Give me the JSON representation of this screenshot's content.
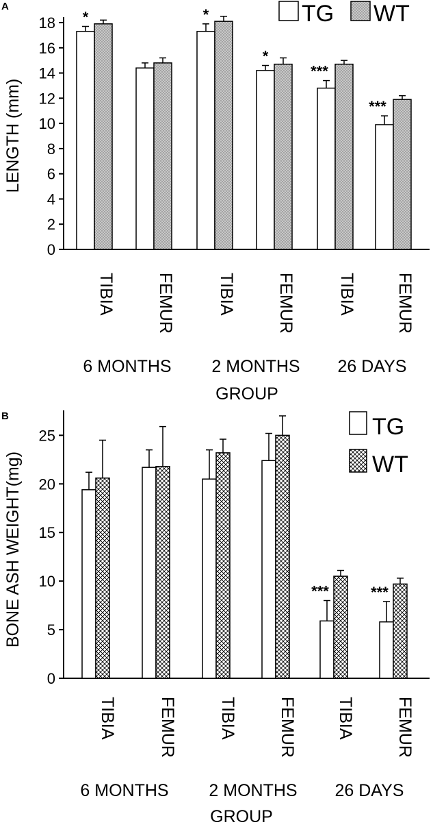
{
  "chart_data": [
    {
      "panel": "A",
      "type": "bar",
      "ylabel": "LENGTH (mm)",
      "xlabel": "GROUP",
      "ylim": [
        0,
        18
      ],
      "yticks": [
        0,
        2,
        4,
        6,
        8,
        10,
        12,
        14,
        16,
        18
      ],
      "categories": [
        "TIBIA",
        "FEMUR",
        "TIBIA",
        "FEMUR",
        "TIBIA",
        "FEMUR"
      ],
      "groups": [
        "6 MONTHS",
        "2 MONTHS",
        "26 DAYS"
      ],
      "series": [
        {
          "name": "TG",
          "values": [
            17.3,
            14.4,
            17.3,
            14.2,
            12.8,
            9.9
          ],
          "errors": [
            0.4,
            0.4,
            0.6,
            0.4,
            0.6,
            0.7
          ]
        },
        {
          "name": "WT",
          "values": [
            17.9,
            14.8,
            18.1,
            14.7,
            14.7,
            11.9
          ],
          "errors": [
            0.3,
            0.4,
            0.4,
            0.5,
            0.3,
            0.3
          ]
        }
      ],
      "significance": [
        "*",
        "",
        "*",
        "*",
        "***",
        "***"
      ],
      "legend": "top-right"
    },
    {
      "panel": "B",
      "type": "bar",
      "ylabel": "BONE ASH WEIGHT(mg)",
      "xlabel": "GROUP",
      "ylim": [
        0,
        27
      ],
      "yticks": [
        0,
        5,
        10,
        15,
        20,
        25
      ],
      "categories": [
        "TIBIA",
        "FEMUR",
        "TIBIA",
        "FEMUR",
        "TIBIA",
        "FEMUR"
      ],
      "groups": [
        "6 MONTHS",
        "2 MONTHS",
        "26 DAYS"
      ],
      "series": [
        {
          "name": "TG",
          "values": [
            19.4,
            21.7,
            20.5,
            22.4,
            5.9,
            5.8
          ],
          "errors": [
            1.8,
            1.8,
            3.0,
            2.8,
            2.1,
            2.1
          ]
        },
        {
          "name": "WT",
          "values": [
            20.6,
            21.8,
            23.2,
            25.0,
            10.5,
            9.7
          ],
          "errors": [
            3.9,
            4.1,
            1.4,
            2.0,
            0.6,
            0.6
          ]
        }
      ],
      "significance": [
        "",
        "",
        "",
        "",
        "***",
        "***"
      ],
      "legend": "top-right"
    }
  ]
}
